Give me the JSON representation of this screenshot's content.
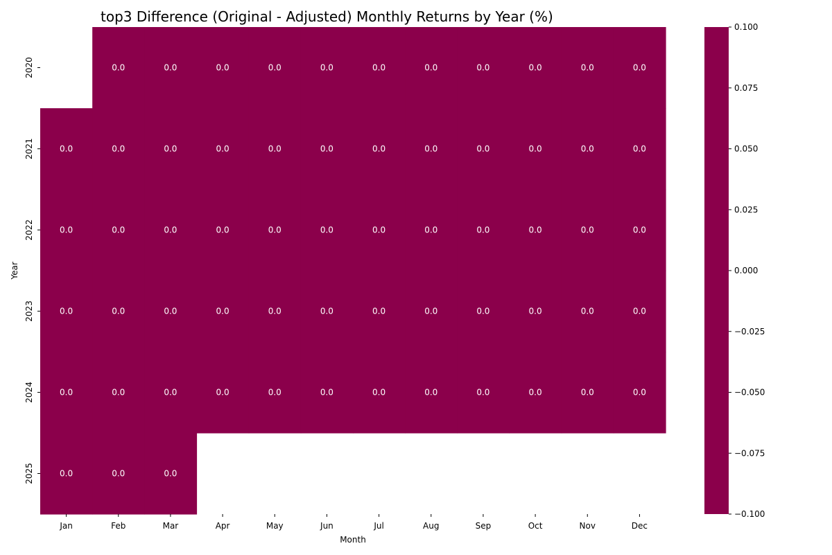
{
  "chart_data": {
    "type": "heatmap",
    "title": "top3 Difference (Original - Adjusted) Monthly Returns by Year (%)",
    "xlabel": "Month",
    "ylabel": "Year",
    "x_categories": [
      "Jan",
      "Feb",
      "Mar",
      "Apr",
      "May",
      "Jun",
      "Jul",
      "Aug",
      "Sep",
      "Oct",
      "Nov",
      "Dec"
    ],
    "y_categories": [
      "2020",
      "2021",
      "2022",
      "2023",
      "2024",
      "2025"
    ],
    "values": [
      [
        null,
        0.0,
        0.0,
        0.0,
        0.0,
        0.0,
        0.0,
        0.0,
        0.0,
        0.0,
        0.0,
        0.0
      ],
      [
        0.0,
        0.0,
        0.0,
        0.0,
        0.0,
        0.0,
        0.0,
        0.0,
        0.0,
        0.0,
        0.0,
        0.0
      ],
      [
        0.0,
        0.0,
        0.0,
        0.0,
        0.0,
        0.0,
        0.0,
        0.0,
        0.0,
        0.0,
        0.0,
        0.0
      ],
      [
        0.0,
        0.0,
        0.0,
        0.0,
        0.0,
        0.0,
        0.0,
        0.0,
        0.0,
        0.0,
        0.0,
        0.0
      ],
      [
        0.0,
        0.0,
        0.0,
        0.0,
        0.0,
        0.0,
        0.0,
        0.0,
        0.0,
        0.0,
        0.0,
        0.0
      ],
      [
        0.0,
        0.0,
        0.0,
        null,
        null,
        null,
        null,
        null,
        null,
        null,
        null,
        null
      ]
    ],
    "cell_labels": [
      [
        null,
        "0.0",
        "0.0",
        "0.0",
        "0.0",
        "0.0",
        "0.0",
        "0.0",
        "0.0",
        "0.0",
        "0.0",
        "0.0"
      ],
      [
        "0.0",
        "0.0",
        "0.0",
        "0.0",
        "0.0",
        "0.0",
        "0.0",
        "0.0",
        "0.0",
        "0.0",
        "0.0",
        "0.0"
      ],
      [
        "0.0",
        "0.0",
        "0.0",
        "0.0",
        "0.0",
        "0.0",
        "0.0",
        "0.0",
        "0.0",
        "0.0",
        "0.0",
        "0.0"
      ],
      [
        "0.0",
        "0.0",
        "0.0",
        "0.0",
        "0.0",
        "0.0",
        "0.0",
        "0.0",
        "0.0",
        "0.0",
        "0.0",
        "0.0"
      ],
      [
        "0.0",
        "0.0",
        "0.0",
        "0.0",
        "0.0",
        "0.0",
        "0.0",
        "0.0",
        "0.0",
        "0.0",
        "0.0",
        "0.0"
      ],
      [
        "0.0",
        "0.0",
        "0.0",
        null,
        null,
        null,
        null,
        null,
        null,
        null,
        null,
        null
      ]
    ],
    "cell_color": "#8b004b",
    "cell_label_color": "#ffffff",
    "colorbar": {
      "range": [
        -0.1,
        0.1
      ],
      "ticks": [
        0.1,
        0.075,
        0.05,
        0.025,
        0.0,
        -0.025,
        -0.05,
        -0.075,
        -0.1
      ],
      "tick_labels": [
        "0.100",
        "0.075",
        "0.050",
        "0.025",
        "0.000",
        "−0.025",
        "−0.050",
        "−0.075",
        "−0.100"
      ],
      "color": "#8b004b"
    }
  }
}
